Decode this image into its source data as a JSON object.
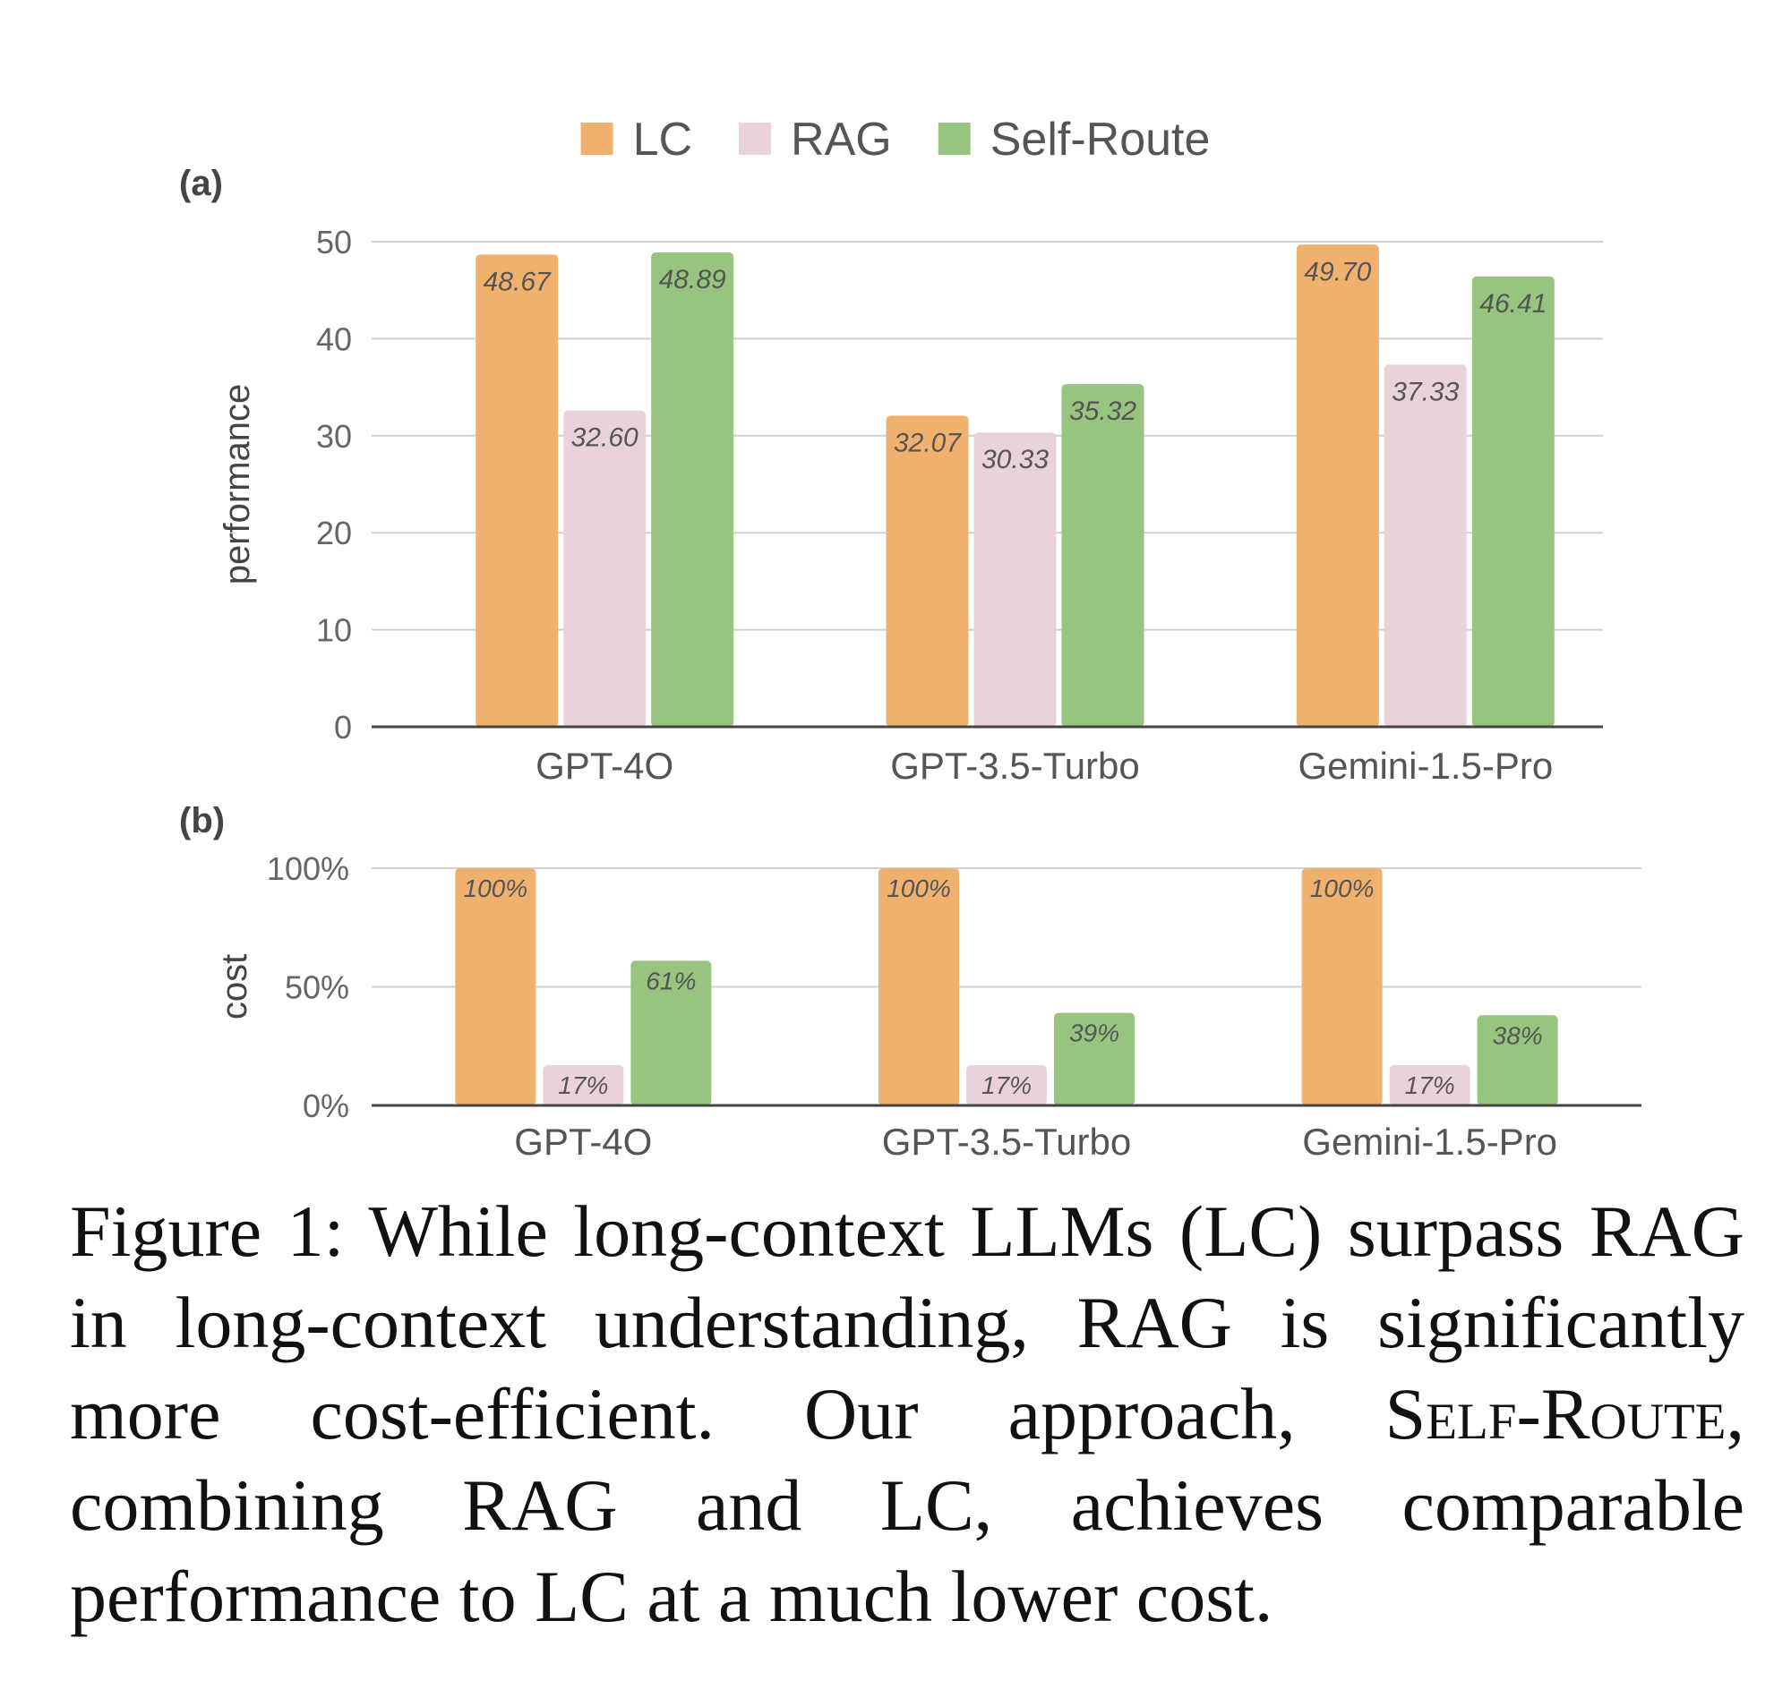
{
  "legend": {
    "placement": "top-center",
    "entries": [
      {
        "label": "LC",
        "color": "#f0b06e"
      },
      {
        "label": "RAG",
        "color": "#ead2dd"
      },
      {
        "label": "Self-Route",
        "color": "#97c47f"
      }
    ]
  },
  "chart_data": [
    {
      "type": "bar",
      "panel_label": "(a)",
      "title": "",
      "ylabel": "performance",
      "xlabel": "",
      "ylim": [
        0,
        50
      ],
      "yticks": [
        "0",
        "10",
        "20",
        "30",
        "40",
        "50"
      ],
      "grid": true,
      "categories": [
        "GPT-4O",
        "GPT-3.5-Turbo",
        "Gemini-1.5-Pro"
      ],
      "series": [
        {
          "name": "LC",
          "color": "#f0b06e",
          "values": [
            48.67,
            32.07,
            49.7
          ],
          "labels": [
            "48.67",
            "32.07",
            "49.70"
          ]
        },
        {
          "name": "RAG",
          "color": "#ead2dd",
          "values": [
            32.6,
            30.33,
            37.33
          ],
          "labels": [
            "32.60",
            "30.33",
            "37.33"
          ]
        },
        {
          "name": "Self-Route",
          "color": "#97c47f",
          "values": [
            48.89,
            35.32,
            46.41
          ],
          "labels": [
            "48.89",
            "35.32",
            "46.41"
          ]
        }
      ]
    },
    {
      "type": "bar",
      "panel_label": "(b)",
      "title": "",
      "ylabel": "cost",
      "xlabel": "",
      "ylim": [
        0,
        100
      ],
      "yticks": [
        "0%",
        "50%",
        "100%"
      ],
      "grid": true,
      "categories": [
        "GPT-4O",
        "GPT-3.5-Turbo",
        "Gemini-1.5-Pro"
      ],
      "series": [
        {
          "name": "LC",
          "color": "#f0b06e",
          "values": [
            100,
            100,
            100
          ],
          "labels": [
            "100%",
            "100%",
            "100%"
          ]
        },
        {
          "name": "RAG",
          "color": "#ead2dd",
          "values": [
            17,
            17,
            17
          ],
          "labels": [
            "17%",
            "17%",
            "17%"
          ]
        },
        {
          "name": "Self-Route",
          "color": "#97c47f",
          "values": [
            61,
            39,
            38
          ],
          "labels": [
            "61%",
            "39%",
            "38%"
          ]
        }
      ]
    }
  ],
  "caption": {
    "part1": "Figure 1: While long-context LLMs (LC) surpass RAG in long-context understanding, RAG is significantly more cost-efficient. Our approach, ",
    "method_name": "Self-Route",
    "part2": ", combining RAG and LC, achieves comparable performance to LC at a much lower cost."
  }
}
